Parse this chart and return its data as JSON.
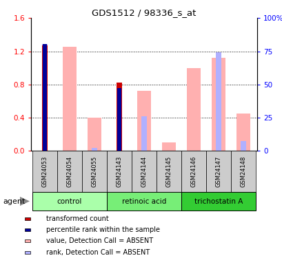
{
  "title": "GDS1512 / 98336_s_at",
  "samples": [
    "GSM24053",
    "GSM24054",
    "GSM24055",
    "GSM24143",
    "GSM24144",
    "GSM24145",
    "GSM24146",
    "GSM24147",
    "GSM24148"
  ],
  "groups": [
    {
      "label": "control",
      "indices": [
        0,
        1,
        2
      ],
      "color": "#aaffaa"
    },
    {
      "label": "retinoic acid",
      "indices": [
        3,
        4,
        5
      ],
      "color": "#77ee77"
    },
    {
      "label": "trichostatin A",
      "indices": [
        6,
        7,
        8
      ],
      "color": "#33cc33"
    }
  ],
  "transformed_count": [
    1.27,
    0,
    0,
    0.82,
    0,
    0,
    0,
    0,
    0
  ],
  "percentile_rank_val": [
    1.29,
    0,
    0,
    0.76,
    0,
    0,
    0,
    0,
    0
  ],
  "value_absent": [
    0,
    1.25,
    0.4,
    0,
    0.72,
    0.1,
    1.0,
    1.12,
    0.45
  ],
  "rank_absent_val": [
    1.29,
    0,
    0.04,
    0,
    0.42,
    0,
    0,
    1.19,
    0.12
  ],
  "ylim_left": [
    0,
    1.6
  ],
  "ylim_right": [
    0,
    100
  ],
  "yticks_left": [
    0,
    0.4,
    0.8,
    1.2,
    1.6
  ],
  "yticks_right": [
    0,
    25,
    50,
    75,
    100
  ],
  "color_transformed": "#cc0000",
  "color_percentile": "#000099",
  "color_value_absent": "#ffb0b0",
  "color_rank_absent": "#b0b0ff",
  "legend_items": [
    {
      "color": "#cc0000",
      "label": "transformed count"
    },
    {
      "color": "#000099",
      "label": "percentile rank within the sample"
    },
    {
      "color": "#ffb0b0",
      "label": "value, Detection Call = ABSENT"
    },
    {
      "color": "#b0b0ff",
      "label": "rank, Detection Call = ABSENT"
    }
  ],
  "grid_yticks": [
    0.4,
    0.8,
    1.2
  ],
  "sample_box_color": "#cccccc",
  "agent_label": "agent"
}
